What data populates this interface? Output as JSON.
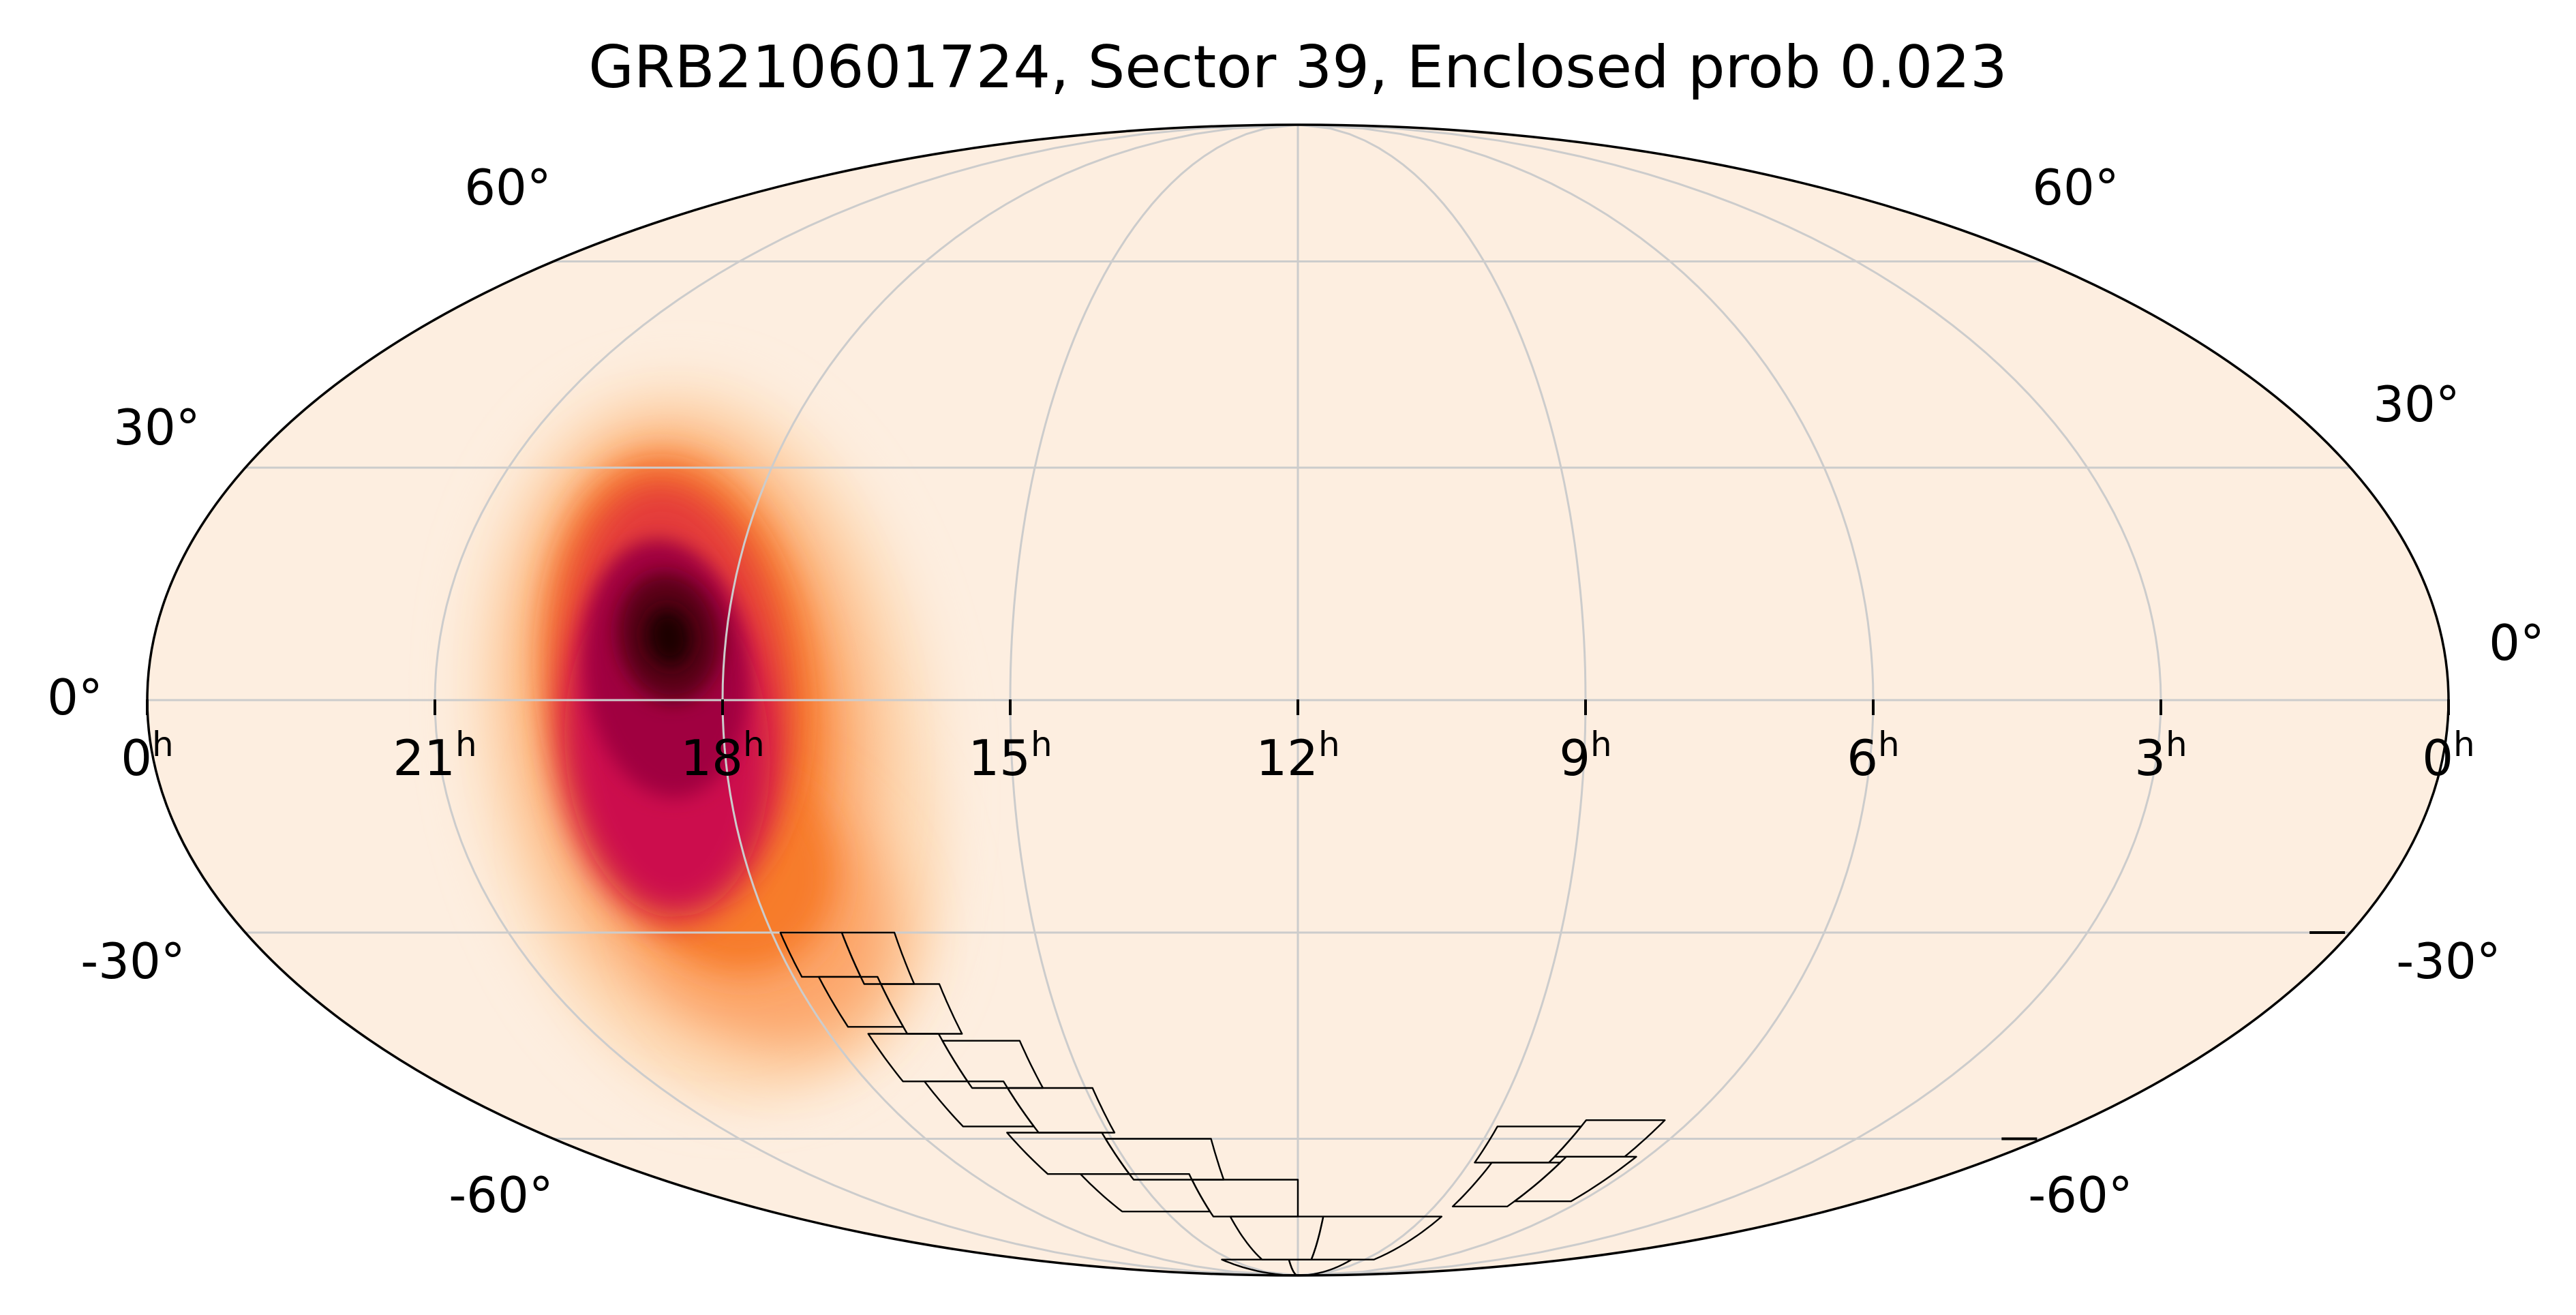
{
  "title": "GRB210601724, Sector 39, Enclosed prob 0.023",
  "projection": "mollweide",
  "colors": {
    "background": "#fdeee0",
    "grid": "#cccccc",
    "outline": "#000000",
    "footprint": "#000000",
    "colormap": [
      "#fdeee0",
      "#fdd9b4",
      "#fca66a",
      "#f77b2c",
      "#e43a3b",
      "#cc0f4e",
      "#a0033f",
      "#5a0019",
      "#1b0003"
    ]
  },
  "longitude_labels": [
    {
      "h": "0",
      "u": "h"
    },
    {
      "h": "21",
      "u": "h"
    },
    {
      "h": "18",
      "u": "h"
    },
    {
      "h": "15",
      "u": "h"
    },
    {
      "h": "12",
      "u": "h"
    },
    {
      "h": "9",
      "u": "h"
    },
    {
      "h": "6",
      "u": "h"
    },
    {
      "h": "3",
      "u": "h"
    },
    {
      "h": "0",
      "u": "h"
    }
  ],
  "latitude_labels_left": [
    "60°",
    "30°",
    "0°",
    "-30°",
    "-60°"
  ],
  "latitude_labels_right": [
    "60°",
    "30°",
    "0°",
    "-30°",
    "-60°"
  ],
  "probability_map": {
    "peak_ra_hours": 18.6,
    "peak_dec_deg": 8,
    "tail_end_ra_hours": 17.7,
    "tail_end_dec_deg": -35,
    "color_scale": "low to high: pale peach to black"
  },
  "footprint_ccd_count": 28
}
